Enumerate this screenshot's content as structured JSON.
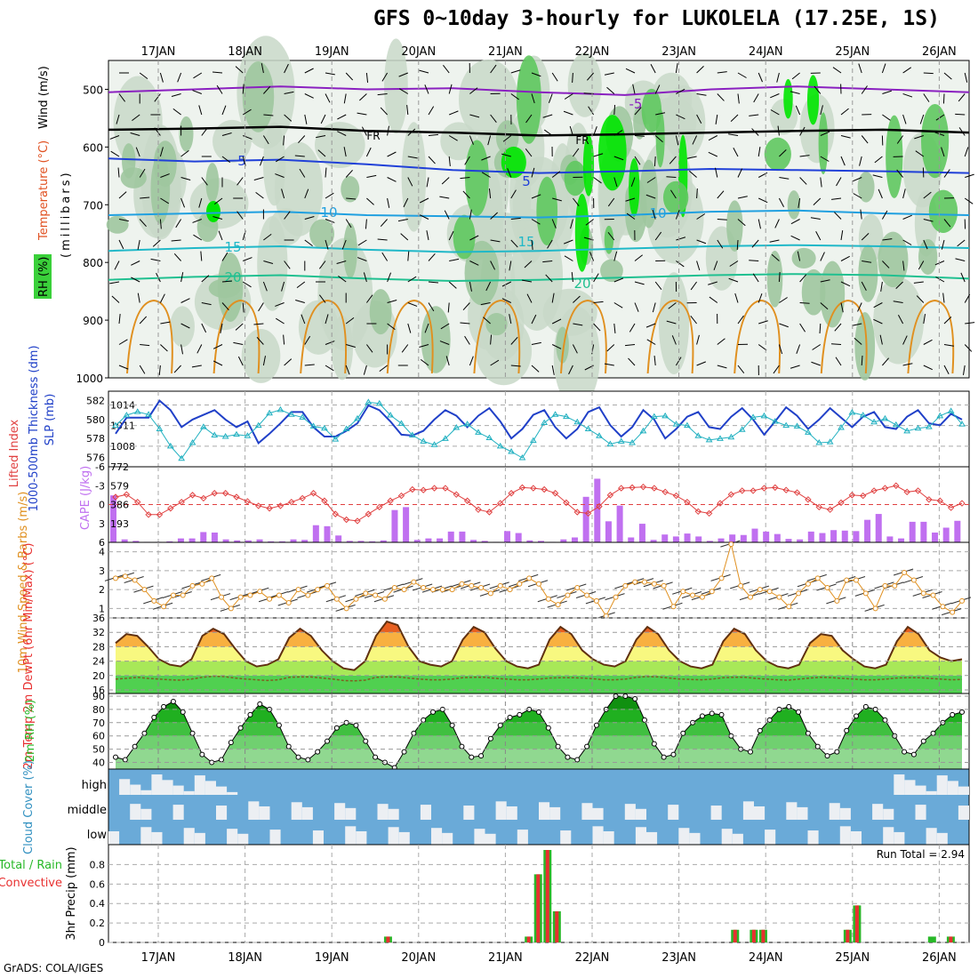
{
  "title": "GFS 0~10day 3-hourly for LUKOLELA (17.25E, 1S)",
  "credit": "GrADS: COLA/IGES",
  "colors": {
    "rh_light": "#c8d8c8",
    "rh_mid": "#9fc79f",
    "rh_green": "#5fc85f",
    "rh_bright": "#00e600",
    "thickness": "#2040c8",
    "slp": "#20b0c0",
    "lifted_index": "#e04040",
    "cape": "#c070f0",
    "wind_speed": "#e09020",
    "cloud_blue": "#6aaad8",
    "precip_total": "#28b828",
    "precip_conv": "#e83030"
  },
  "chart_data": [
    {
      "name": "upper_air",
      "type": "heatmap",
      "dates": [
        "17JAN",
        "18JAN",
        "19JAN",
        "20JAN",
        "21JAN",
        "22JAN",
        "23JAN",
        "24JAN",
        "25JAN",
        "26JAN"
      ],
      "ylabel_parts": [
        "RH (%)",
        "Temperature (°C)",
        "Wind (m/s)",
        "(millibars)"
      ],
      "y_ticks": [
        500,
        600,
        700,
        800,
        900,
        1000
      ],
      "ylim": [
        1000,
        450
      ],
      "isotherm_labels": [
        "FR",
        "FR",
        "-5",
        "5",
        "5",
        "10",
        "10",
        "15",
        "15",
        "20",
        "20"
      ],
      "isotherms": [
        {
          "label": "-5",
          "p": [
            505,
            500,
            495,
            500,
            498,
            505,
            510,
            500,
            495,
            500,
            505
          ]
        },
        {
          "label": "FR",
          "p": [
            570,
            568,
            565,
            572,
            575,
            580,
            578,
            575,
            572,
            570,
            575
          ]
        },
        {
          "label": "5",
          "p": [
            620,
            625,
            622,
            630,
            640,
            645,
            642,
            638,
            640,
            642,
            645
          ]
        },
        {
          "label": "10",
          "p": [
            718,
            715,
            712,
            718,
            720,
            722,
            718,
            712,
            710,
            715,
            718
          ]
        },
        {
          "label": "15",
          "p": [
            780,
            775,
            772,
            778,
            782,
            780,
            776,
            772,
            770,
            772,
            775
          ]
        },
        {
          "label": "20",
          "p": [
            830,
            825,
            822,
            828,
            832,
            830,
            826,
            822,
            820,
            822,
            828
          ]
        }
      ]
    },
    {
      "name": "thickness_slp",
      "type": "line",
      "ylabel": "1000-500mb Thickness (dm)",
      "ylabel2": "SLP (mb)",
      "left_ticks": [
        576,
        578,
        580,
        582
      ],
      "right_ticks": [
        1008,
        1011,
        1014
      ],
      "series": [
        {
          "name": "1000-500mb Thickness (dm)",
          "values": [
            578.5,
            580.2,
            580.2,
            580.2,
            582.0,
            581.0,
            579.2,
            580.0,
            580.5,
            581.0,
            580.0,
            579.2,
            579.8,
            577.5,
            578.5,
            579.6,
            580.8,
            580.8,
            579.2,
            578.2,
            578.2,
            578.8,
            579.6,
            581.5,
            581.0,
            579.8,
            578.4,
            578.3,
            578.8,
            580.0,
            581.0,
            580.4,
            579.2,
            580.4,
            581.2,
            579.8,
            578.0,
            579.0,
            580.5,
            581.0,
            579.2,
            578.0,
            579.0,
            580.8,
            581.3,
            579.4,
            578.2,
            579.2,
            581.0,
            580.0,
            578.0,
            579.0,
            580.3,
            580.8,
            579.2,
            579.0,
            580.3,
            581.2,
            580.0,
            578.4,
            579.8,
            581.3,
            580.4,
            579.0,
            580.0,
            581.2,
            580.2,
            579.2,
            580.3,
            580.8,
            579.2,
            579.0,
            580.3,
            581.0,
            579.6,
            579.4,
            580.6,
            580.0
          ]
        },
        {
          "name": "SLP (mb)",
          "values": [
            1011.0,
            1012.5,
            1013.0,
            1012.6,
            1010.5,
            1008.0,
            1006.2,
            1008.5,
            1010.8,
            1009.6,
            1009.4,
            1009.7,
            1009.5,
            1011.0,
            1012.8,
            1013.3,
            1012.6,
            1012.2,
            1010.9,
            1010.6,
            1009.0,
            1010.5,
            1012.0,
            1014.4,
            1014.2,
            1012.5,
            1011.3,
            1009.6,
            1008.7,
            1008.2,
            1009.1,
            1010.7,
            1011.2,
            1010.0,
            1009.2,
            1008.0,
            1007.2,
            1006.3,
            1008.8,
            1011.4,
            1012.6,
            1012.3,
            1011.5,
            1010.5,
            1009.5,
            1008.3,
            1008.7,
            1008.5,
            1010.2,
            1012.3,
            1012.4,
            1011.2,
            1011.0,
            1009.5,
            1008.9,
            1009.1,
            1009.3,
            1010.4,
            1012.2,
            1012.4,
            1011.6,
            1011.0,
            1010.9,
            1010.0,
            1008.5,
            1008.6,
            1010.7,
            1012.9,
            1012.5,
            1011.5,
            1012.0,
            1011.1,
            1010.2,
            1010.6,
            1010.8,
            1012.4,
            1013.1,
            1011.2
          ]
        }
      ]
    },
    {
      "name": "lifted_cape",
      "type": "bar",
      "ylabel": "Lifted Index",
      "ylabel2": "CAPE (J/kg)",
      "left_ticks": [
        -6,
        -3,
        0,
        3,
        6
      ],
      "right_ticks": [
        193,
        386,
        579,
        772
      ],
      "series": [
        {
          "name": "Lifted Index",
          "values": [
            -1.2,
            -1.6,
            -0.4,
            1.6,
            1.6,
            0.6,
            -0.4,
            -1.5,
            -1.0,
            -1.8,
            -1.8,
            -1.2,
            -0.5,
            0.2,
            0.6,
            0.2,
            -0.4,
            -1.0,
            -1.8,
            -0.6,
            1.5,
            2.4,
            2.6,
            1.5,
            0.4,
            -0.6,
            -1.4,
            -2.4,
            -2.3,
            -2.6,
            -2.6,
            -1.6,
            -0.6,
            0.8,
            1.2,
            -0.2,
            -1.8,
            -2.7,
            -2.6,
            -2.4,
            -1.8,
            -0.3,
            1.2,
            1.4,
            0.3,
            -1.5,
            -2.6,
            -2.7,
            -2.8,
            -2.6,
            -2.0,
            -1.4,
            -0.4,
            1.1,
            1.4,
            -0.2,
            -1.6,
            -2.2,
            -2.2,
            -2.6,
            -2.7,
            -2.3,
            -1.9,
            -0.8,
            0.4,
            0.8,
            -0.3,
            -1.5,
            -1.4,
            -2.2,
            -2.6,
            -3.0,
            -2.0,
            -2.2,
            -0.8,
            -0.6,
            0.5,
            -0.2
          ]
        },
        {
          "name": "CAPE (J/kg)",
          "values": [
            480,
            30,
            15,
            5,
            5,
            10,
            40,
            40,
            105,
            100,
            30,
            20,
            20,
            30,
            10,
            10,
            30,
            25,
            175,
            165,
            70,
            15,
            15,
            10,
            20,
            330,
            360,
            25,
            40,
            40,
            110,
            110,
            25,
            15,
            5,
            115,
            95,
            20,
            15,
            5,
            30,
            50,
            465,
            650,
            215,
            375,
            50,
            190,
            25,
            80,
            60,
            90,
            60,
            15,
            40,
            80,
            75,
            140,
            110,
            85,
            35,
            30,
            110,
            95,
            125,
            120,
            115,
            230,
            290,
            60,
            40,
            210,
            210,
            100,
            150,
            220
          ]
        }
      ]
    },
    {
      "name": "wind10m",
      "type": "line",
      "ylabel": "10m Wind Speed & Barbs (m/s)",
      "y_ticks": [
        1,
        2,
        3,
        4
      ],
      "ylim": [
        0.5,
        4.5
      ],
      "series": [
        {
          "name": "10m Wind Speed",
          "values": [
            2.6,
            2.7,
            2.5,
            2.0,
            1.4,
            1.1,
            1.7,
            1.7,
            2.2,
            2.3,
            2.6,
            1.6,
            1.0,
            1.6,
            1.7,
            1.9,
            1.5,
            1.7,
            1.3,
            2.0,
            1.7,
            2.0,
            2.2,
            1.5,
            1.0,
            1.5,
            1.8,
            1.7,
            1.5,
            2.1,
            2.0,
            2.4,
            2.1,
            2.0,
            2.0,
            2.0,
            2.3,
            2.2,
            2.1,
            1.8,
            2.2,
            2.0,
            2.3,
            2.6,
            2.3,
            1.5,
            1.2,
            1.7,
            2.1,
            1.7,
            1.4,
            0.6,
            1.6,
            2.2,
            2.4,
            2.4,
            2.3,
            2.2,
            1.1,
            1.9,
            1.7,
            1.6,
            1.9,
            2.6,
            4.4,
            2.2,
            1.6,
            2.0,
            1.9,
            1.6,
            1.1,
            1.8,
            2.3,
            2.6,
            2.1,
            1.4,
            2.5,
            2.5,
            1.8,
            1.0,
            2.2,
            2.2,
            2.9,
            2.5,
            1.8,
            1.7,
            1.1,
            0.8,
            1.4
          ]
        }
      ]
    },
    {
      "name": "temp2m",
      "type": "area",
      "ylabel": "2m Temp 2m DewPt (6hr Min/Max) (°C)",
      "y_ticks": [
        16,
        20,
        24,
        28,
        32,
        36
      ],
      "ylim": [
        15,
        36
      ],
      "series": [
        {
          "name": "2m Temp",
          "values": [
            29,
            31.5,
            31,
            28,
            24.5,
            23,
            22.5,
            24.5,
            31,
            33,
            31.5,
            27.5,
            24,
            22.5,
            23,
            24.5,
            30.5,
            33,
            31,
            27,
            24,
            22,
            21.5,
            24,
            31,
            35,
            34,
            28,
            24,
            23,
            22.5,
            24,
            30,
            33.5,
            32,
            27.5,
            24,
            22.5,
            22,
            23,
            30,
            33.5,
            31.5,
            27,
            24.5,
            23,
            22.5,
            24,
            30,
            33.5,
            31.5,
            27,
            24,
            22.5,
            22,
            23,
            29.5,
            33,
            31.5,
            27,
            24,
            22.5,
            22,
            23,
            29,
            31.5,
            31,
            27,
            24.5,
            22.5,
            22,
            23,
            29.5,
            33.5,
            31.5,
            27,
            25,
            24,
            24.5
          ]
        },
        {
          "name": "2m DewPt",
          "values": [
            19,
            19.2,
            19.5,
            19.2,
            19,
            18.8,
            18.7,
            19,
            19.5,
            19.8,
            19.7,
            19.3,
            19,
            18.8,
            18.6,
            18.8,
            19.5,
            19.6,
            19.6,
            19.3,
            19,
            18.6,
            18.5,
            18.7,
            19.5,
            19.6,
            19.6,
            19.3,
            19,
            18.8,
            18.8,
            19,
            19.4,
            19.5,
            19.5,
            19.2,
            19,
            18.8,
            18.8,
            19,
            19.3,
            19.4,
            19.4,
            19.3,
            19.1,
            18.8,
            18.8,
            19,
            19.5,
            19.7,
            19.6,
            19.3,
            19,
            18.9,
            18.8,
            19,
            19.4,
            19.5,
            19.5,
            19.2,
            19,
            18.8,
            18.7,
            19,
            19.3,
            19.5,
            19.4,
            19.2,
            19,
            18.8,
            18.8,
            19,
            19.3,
            19.4,
            19.4,
            19.2,
            19,
            18.8,
            18.9
          ]
        }
      ]
    },
    {
      "name": "rh2m",
      "type": "area",
      "ylabel": "2m RH (%)",
      "y_ticks": [
        40,
        50,
        60,
        70,
        80,
        90
      ],
      "ylim": [
        35,
        92
      ],
      "series": [
        {
          "name": "2m RH",
          "values": [
            44,
            42,
            52,
            62,
            74,
            82,
            86,
            78,
            62,
            46,
            40,
            42,
            55,
            66,
            76,
            84,
            80,
            68,
            52,
            44,
            42,
            48,
            56,
            66,
            70,
            68,
            56,
            44,
            40,
            36,
            48,
            62,
            72,
            78,
            80,
            68,
            52,
            44,
            45,
            58,
            68,
            74,
            76,
            80,
            78,
            66,
            52,
            44,
            42,
            52,
            68,
            80,
            90,
            90,
            88,
            72,
            54,
            44,
            46,
            62,
            70,
            75,
            77,
            76,
            60,
            50,
            48,
            64,
            72,
            80,
            82,
            78,
            62,
            52,
            45,
            48,
            64,
            75,
            82,
            80,
            72,
            60,
            48,
            46,
            56,
            62,
            70,
            76,
            78
          ]
        }
      ]
    },
    {
      "name": "cloud_cover",
      "type": "heatmap",
      "ylabel": "Cloud Cover (%)",
      "rows": [
        "high",
        "middle",
        "low"
      ]
    },
    {
      "name": "precip",
      "type": "bar",
      "ylabel": "3hr Precip (mm)",
      "legend": [
        "Total / Rain",
        "Convective"
      ],
      "annotation": "Run Total = 2.94",
      "y_ticks": [
        0,
        0.2,
        0.4,
        0.6,
        0.8
      ],
      "ylim": [
        0,
        0.95
      ],
      "series": [
        {
          "name": "Total / Rain",
          "values": [
            0,
            0,
            0,
            0,
            0,
            0,
            0,
            0,
            0,
            0,
            0,
            0,
            0,
            0,
            0,
            0,
            0,
            0,
            0,
            0,
            0,
            0,
            0,
            0,
            0,
            0,
            0,
            0,
            0,
            0.06,
            0,
            0,
            0,
            0,
            0,
            0,
            0,
            0,
            0,
            0,
            0,
            0,
            0,
            0,
            0.06,
            0.7,
            0.95,
            0.32,
            0,
            0,
            0,
            0,
            0,
            0,
            0,
            0,
            0,
            0,
            0,
            0,
            0,
            0,
            0,
            0,
            0,
            0,
            0.13,
            0,
            0.13,
            0.13,
            0,
            0,
            0,
            0,
            0,
            0,
            0,
            0,
            0.13,
            0.38,
            0,
            0,
            0,
            0,
            0,
            0,
            0,
            0.06,
            0,
            0.06,
            0
          ]
        },
        {
          "name": "Convective",
          "values": [
            0,
            0,
            0,
            0,
            0,
            0,
            0,
            0,
            0,
            0,
            0,
            0,
            0,
            0,
            0,
            0,
            0,
            0,
            0,
            0,
            0,
            0,
            0,
            0,
            0,
            0,
            0,
            0,
            0,
            0.06,
            0,
            0,
            0,
            0,
            0,
            0,
            0,
            0,
            0,
            0,
            0,
            0,
            0,
            0,
            0.06,
            0.7,
            0.95,
            0.32,
            0,
            0,
            0,
            0,
            0,
            0,
            0,
            0,
            0,
            0,
            0,
            0,
            0,
            0,
            0,
            0,
            0,
            0,
            0.13,
            0,
            0.13,
            0.13,
            0,
            0,
            0,
            0,
            0,
            0,
            0,
            0,
            0.13,
            0.38,
            0,
            0,
            0,
            0,
            0,
            0,
            0,
            0,
            0,
            0.06,
            0
          ]
        }
      ]
    }
  ]
}
